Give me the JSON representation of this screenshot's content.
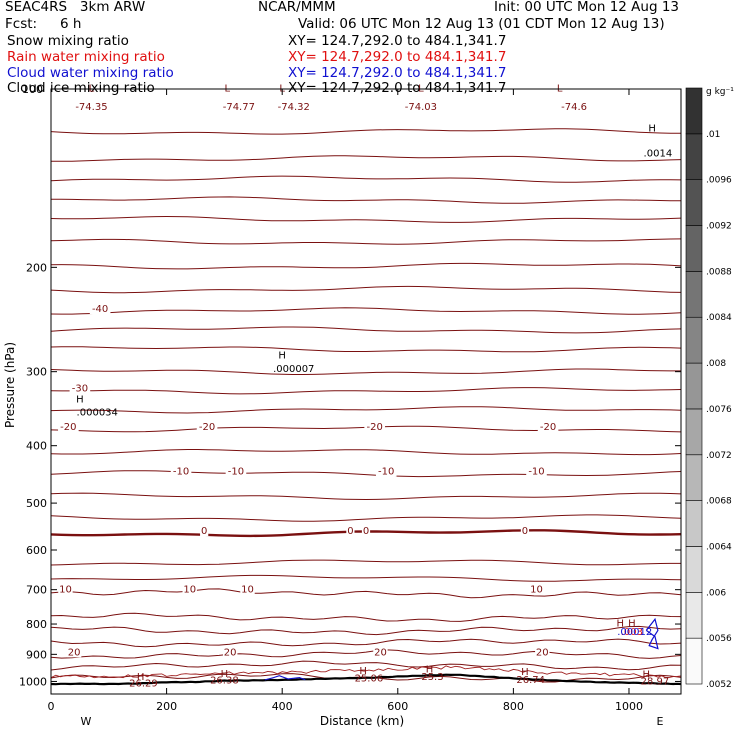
{
  "header": {
    "model": "SEAC4RS   3km ARW",
    "org": "NCAR/MMM",
    "init": "Init: 00 UTC Mon 12 Aug 13",
    "fcst_label": "Fcst:",
    "fcst_value": "6 h",
    "valid": "Valid: 06 UTC Mon 12 Aug 13 (01 CDT Mon 12 Aug 13)",
    "fields": [
      {
        "name": "Snow mixing ratio",
        "xy": "XY= 124.7,292.0 to 484.1,341.7",
        "color": "#000000"
      },
      {
        "name": "Rain water mixing ratio",
        "xy": "XY= 124.7,292.0 to 484.1,341.7",
        "color": "#e01010"
      },
      {
        "name": "Cloud water mixing ratio",
        "xy": "XY= 124.7,292.0 to 484.1,341.7",
        "color": "#1010d0"
      },
      {
        "name": "Cloud ice mixing ratio",
        "xy": "XY= 124.7,292.0 to 484.1,341.7",
        "color": "#000000"
      }
    ]
  },
  "chart_data": {
    "type": "line",
    "subtype": "vertical cross-section contour",
    "xlabel": "Distance (km)",
    "ylabel": "Pressure (hPa)",
    "xlim": [
      0,
      1090
    ],
    "ylim": [
      1050,
      100
    ],
    "y_scale": "log",
    "x_ticks": [
      0,
      200,
      400,
      600,
      800,
      1000
    ],
    "y_ticks": [
      200,
      300,
      400,
      500,
      600,
      700,
      800,
      900,
      1000
    ],
    "y_tick_labels": [
      "200",
      "300",
      "400",
      "500",
      "600",
      "700",
      "800",
      "900",
      "1000"
    ],
    "top_left_tick_label": "100",
    "direction_left": "W",
    "direction_right": "E",
    "colorbar": {
      "unit": "g kg⁻¹",
      "labels": [
        ".0052",
        ".0056",
        ".006",
        ".0064",
        ".0068",
        ".0072",
        ".0076",
        ".008",
        ".0084",
        ".0088",
        ".0092",
        ".0096",
        ".01"
      ]
    },
    "temperature_contours": {
      "color": "#7a1010",
      "levels_hPa": [
        118,
        131,
        142,
        154,
        166,
        181,
        199,
        218,
        237,
        255,
        275,
        300,
        323,
        348,
        375,
        410,
        446,
        487,
        530,
        562,
        630,
        670,
        710,
        780,
        820,
        860,
        900,
        940,
        985
      ],
      "labels": [
        {
          "text": "-74.35",
          "x": 70,
          "p": 108
        },
        {
          "text": "-74.77",
          "x": 325,
          "p": 108
        },
        {
          "text": "-74.32",
          "x": 420,
          "p": 108
        },
        {
          "text": "-74.03",
          "x": 640,
          "p": 108
        },
        {
          "text": "-74.6",
          "x": 905,
          "p": 108
        },
        {
          "text": "-40",
          "x": 85,
          "p": 237
        },
        {
          "text": "-30",
          "x": 50,
          "p": 323
        },
        {
          "text": "-20",
          "x": 30,
          "p": 375
        },
        {
          "text": "-20",
          "x": 270,
          "p": 375
        },
        {
          "text": "-20",
          "x": 560,
          "p": 375
        },
        {
          "text": "-20",
          "x": 860,
          "p": 375
        },
        {
          "text": "-10",
          "x": 225,
          "p": 446
        },
        {
          "text": "-10",
          "x": 320,
          "p": 446
        },
        {
          "text": "-10",
          "x": 580,
          "p": 446
        },
        {
          "text": "-10",
          "x": 840,
          "p": 446
        },
        {
          "text": "0",
          "x": 265,
          "p": 562
        },
        {
          "text": "0",
          "x": 518,
          "p": 562
        },
        {
          "text": "0",
          "x": 545,
          "p": 562
        },
        {
          "text": "0",
          "x": 820,
          "p": 562
        },
        {
          "text": "10",
          "x": 25,
          "p": 705
        },
        {
          "text": "10",
          "x": 240,
          "p": 705
        },
        {
          "text": "10",
          "x": 340,
          "p": 705
        },
        {
          "text": "10",
          "x": 840,
          "p": 705
        },
        {
          "text": "20",
          "x": 40,
          "p": 900
        },
        {
          "text": "20",
          "x": 310,
          "p": 900
        },
        {
          "text": "20",
          "x": 570,
          "p": 900
        },
        {
          "text": "20",
          "x": 850,
          "p": 900
        }
      ],
      "surface_labels": [
        {
          "text": "26.29",
          "x": 160,
          "p": 1005
        },
        {
          "text": "26.38",
          "x": 300,
          "p": 993
        },
        {
          "text": "25.06",
          "x": 550,
          "p": 985
        },
        {
          "text": "25.3",
          "x": 660,
          "p": 980
        },
        {
          "text": "26.74",
          "x": 830,
          "p": 990
        },
        {
          "text": "28.97",
          "x": 1045,
          "p": 996
        }
      ]
    },
    "extrema_markers": [
      {
        "symbol": "L",
        "x": 70,
        "p": 101
      },
      {
        "symbol": "L",
        "x": 305,
        "p": 101
      },
      {
        "symbol": "L",
        "x": 400,
        "p": 101
      },
      {
        "symbol": "L",
        "x": 640,
        "p": 101
      },
      {
        "symbol": "L",
        "x": 880,
        "p": 101
      },
      {
        "symbol": "H",
        "x": 1040,
        "p": 118
      },
      {
        "symbol": "H",
        "x": 400,
        "p": 285
      },
      {
        "symbol": "H",
        "x": 50,
        "p": 338
      },
      {
        "symbol": "H",
        "x": 155,
        "p": 995
      },
      {
        "symbol": "H",
        "x": 300,
        "p": 982
      },
      {
        "symbol": "H",
        "x": 540,
        "p": 972
      },
      {
        "symbol": "H",
        "x": 655,
        "p": 966
      },
      {
        "symbol": "H",
        "x": 820,
        "p": 976
      },
      {
        "symbol": "H",
        "x": 1030,
        "p": 985
      },
      {
        "symbol": "H",
        "x": 985,
        "p": 808
      },
      {
        "symbol": "H",
        "x": 1005,
        "p": 808
      }
    ],
    "max_value_labels": [
      {
        "text": ".0014",
        "x": 1050,
        "p": 128,
        "color": "#000000"
      },
      {
        "text": ".000007",
        "x": 420,
        "p": 296,
        "color": "#000000"
      },
      {
        "text": ".000034",
        "x": 80,
        "p": 350,
        "color": "#000000"
      },
      {
        "text": ".003",
        "x": 1005,
        "p": 822,
        "color": "#e01010"
      },
      {
        "text": ".00012",
        "x": 1010,
        "p": 822,
        "color": "#1010d0"
      }
    ],
    "terrain_surface": {
      "x": [
        0,
        50,
        100,
        150,
        200,
        250,
        300,
        350,
        400,
        450,
        500,
        550,
        600,
        650,
        700,
        750,
        800,
        850,
        900,
        950,
        1000,
        1050,
        1090
      ],
      "p": [
        1010,
        1009,
        1010,
        1008,
        1003,
        1002,
        997,
        996,
        994,
        991,
        988,
        986,
        981,
        977,
        974,
        981,
        988,
        994,
        999,
        1003,
        1005,
        1008,
        1010
      ]
    },
    "cloud_water_contours": [
      {
        "x": [
          1030,
          1045,
          1050,
          1040,
          1035,
          1050,
          1045,
          1030
        ],
        "p": [
          820,
          785,
          820,
          850,
          870,
          880,
          840,
          820
        ]
      }
    ],
    "cloud_bottom_contour_x": [
      370,
      385,
      395,
      410,
      430,
      440
    ],
    "cloud_bottom_contour_p": [
      994,
      985,
      978,
      990,
      985,
      994
    ]
  }
}
